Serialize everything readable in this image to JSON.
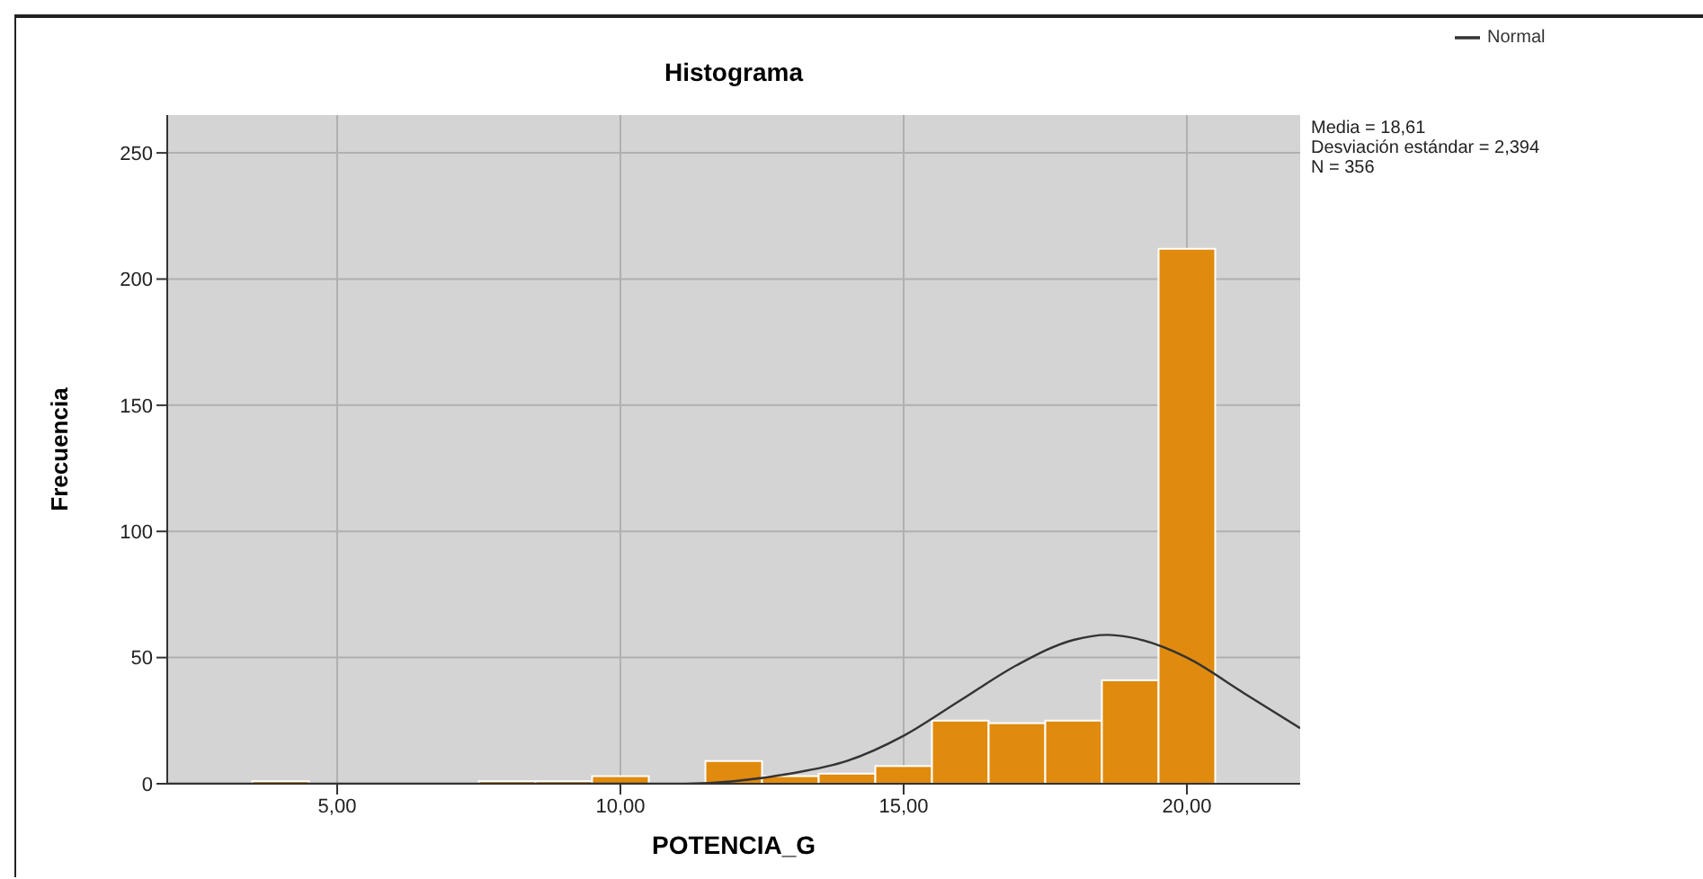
{
  "chart_data": {
    "type": "histogram",
    "title": "Histograma",
    "xlabel": "POTENCIA_G",
    "ylabel": "Frecuencia",
    "bins": [
      3.5,
      4.5,
      5.5,
      6.5,
      7.5,
      8.5,
      9.5,
      10.5,
      11.5,
      12.5,
      13.5,
      14.5,
      15.5,
      16.5,
      17.5,
      18.5,
      19.5,
      20.5
    ],
    "values": [
      1,
      0,
      0,
      0,
      1,
      1,
      3,
      0,
      9,
      3,
      4,
      7,
      25,
      24,
      25,
      41,
      212
    ],
    "color": "#e08a0e",
    "series": [
      {
        "name": "Normal",
        "type": "line",
        "color": "#333333",
        "x": [
          2,
          8,
          10,
          11,
          12,
          13,
          14,
          15,
          16,
          17,
          18,
          18.6,
          19,
          20,
          21,
          22
        ],
        "values": [
          0,
          0,
          0,
          0,
          1,
          4,
          9,
          19,
          33,
          47,
          57,
          59,
          58,
          50,
          36,
          22
        ]
      }
    ],
    "xlim": [
      2,
      22
    ],
    "xticks": [
      {
        "value": 5,
        "label": "5,00"
      },
      {
        "value": 10,
        "label": "10,00"
      },
      {
        "value": 15,
        "label": "15,00"
      },
      {
        "value": 20,
        "label": "20,00"
      }
    ],
    "ylim": [
      0,
      265
    ],
    "yticks": [
      0,
      50,
      100,
      150,
      200,
      250
    ],
    "grid": true,
    "legend": "top right",
    "marker": "none",
    "line_style": "solid",
    "annotations": [
      "Media = 18,61",
      "Desviación estándar = 2,394",
      "N = 356"
    ]
  }
}
